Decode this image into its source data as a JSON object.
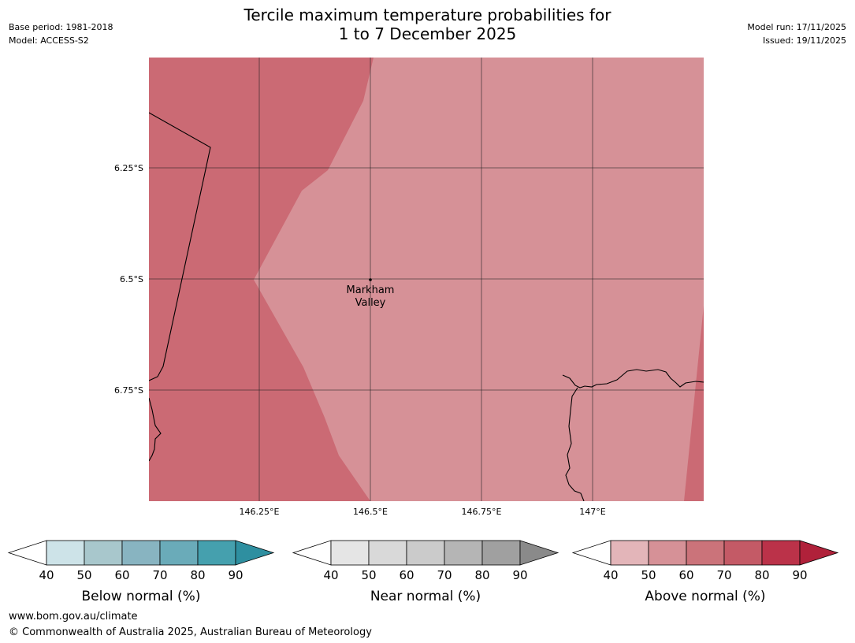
{
  "header": {
    "title_line1": "Tercile maximum temperature probabilities for",
    "title_line2": "1 to 7 December 2025",
    "base_period": "Base period: 1981-2018",
    "model": "Model: ACCESS-S2",
    "model_run": "Model run: 17/11/2025",
    "issued": "Issued: 19/11/2025"
  },
  "map": {
    "lat_labels": [
      "6.25°S",
      "6.5°S",
      "6.75°S"
    ],
    "lon_labels": [
      "146.25°E",
      "146.5°E",
      "146.75°E",
      "147°E"
    ],
    "place": {
      "line1": "Markham",
      "line2": "Valley"
    },
    "colors": {
      "above_60_70": "#cb6a74",
      "above_50_60": "#d69197"
    }
  },
  "legends": [
    {
      "label": "Below normal (%)",
      "ticks": [
        "40",
        "50",
        "60",
        "70",
        "80",
        "90"
      ],
      "colors": [
        "#cde3e8",
        "#a8c7cc",
        "#88b4c1",
        "#6aabb9",
        "#45a0ae",
        "#2e8fa0"
      ]
    },
    {
      "label": "Near normal (%)",
      "ticks": [
        "40",
        "50",
        "60",
        "70",
        "80",
        "90"
      ],
      "colors": [
        "#e5e5e5",
        "#d9d9d9",
        "#cbcbcb",
        "#b5b5b5",
        "#a0a0a0",
        "#8a8a8a"
      ]
    },
    {
      "label": "Above normal (%)",
      "ticks": [
        "40",
        "50",
        "60",
        "70",
        "80",
        "90"
      ],
      "colors": [
        "#e3b5b9",
        "#d69197",
        "#cb737a",
        "#c45a66",
        "#bb3249",
        "#b0213a"
      ]
    }
  ],
  "footer": {
    "url": "www.bom.gov.au/climate",
    "copyright": "© Commonwealth of Australia 2025, Australian Bureau of Meteorology"
  }
}
